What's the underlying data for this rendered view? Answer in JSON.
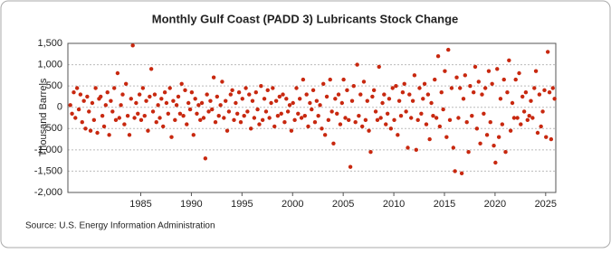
{
  "chart_data": {
    "type": "scatter",
    "title": "Monthly Gulf Coast (PADD 3) Lubricants Stock Change",
    "y_label": "Thousand Barrels",
    "source": "Source: U.S. Energy Information Administration",
    "xlim": [
      1977.8,
      2026.0
    ],
    "xticks": [
      1985,
      1990,
      1995,
      2000,
      2005,
      2010,
      2015,
      2020,
      2025
    ],
    "ylim": [
      -2000,
      1500
    ],
    "yticks": [
      {
        "value": 1500,
        "label": "1,500"
      },
      {
        "value": 1000,
        "label": "1,000"
      },
      500,
      0,
      -500,
      {
        "value": -1000,
        "label": "-1,000"
      },
      {
        "value": -1500,
        "label": "-1,500"
      },
      {
        "value": -2000,
        "label": "-2,000"
      }
    ],
    "grid": true,
    "series": [
      {
        "color": "#c8280f",
        "x": [
          1978.04,
          1978.21,
          1978.38,
          1978.54,
          1978.71,
          1978.88,
          1979.04,
          1979.21,
          1979.38,
          1979.54,
          1979.71,
          1979.88,
          1980.04,
          1980.21,
          1980.38,
          1980.54,
          1980.71,
          1980.88,
          1981.04,
          1981.21,
          1981.38,
          1981.54,
          1981.71,
          1981.88,
          1982.04,
          1982.21,
          1982.38,
          1982.54,
          1982.71,
          1982.88,
          1983.04,
          1983.21,
          1983.38,
          1983.54,
          1983.71,
          1983.88,
          1984.04,
          1984.21,
          1984.38,
          1984.54,
          1984.71,
          1984.88,
          1985.04,
          1985.21,
          1985.38,
          1985.54,
          1985.71,
          1985.88,
          1986.04,
          1986.21,
          1986.38,
          1986.54,
          1986.71,
          1986.88,
          1987.04,
          1987.21,
          1987.38,
          1987.54,
          1987.71,
          1987.88,
          1988.04,
          1988.21,
          1988.38,
          1988.54,
          1988.71,
          1988.88,
          1989.04,
          1989.21,
          1989.38,
          1989.54,
          1989.71,
          1989.88,
          1990.04,
          1990.21,
          1990.38,
          1990.54,
          1990.71,
          1990.88,
          1991.04,
          1991.21,
          1991.38,
          1991.54,
          1991.71,
          1991.88,
          1992.04,
          1992.21,
          1992.38,
          1992.54,
          1992.71,
          1992.88,
          1993.04,
          1993.21,
          1993.38,
          1993.54,
          1993.71,
          1993.88,
          1994.04,
          1994.21,
          1994.38,
          1994.54,
          1994.71,
          1994.88,
          1995.04,
          1995.21,
          1995.38,
          1995.54,
          1995.71,
          1995.88,
          1996.04,
          1996.21,
          1996.38,
          1996.54,
          1996.71,
          1996.88,
          1997.04,
          1997.21,
          1997.38,
          1997.54,
          1997.71,
          1997.88,
          1998.04,
          1998.21,
          1998.38,
          1998.54,
          1998.71,
          1998.88,
          1999.04,
          1999.21,
          1999.38,
          1999.54,
          1999.71,
          1999.88,
          2000.04,
          2000.21,
          2000.38,
          2000.54,
          2000.71,
          2000.88,
          2001.04,
          2001.21,
          2001.38,
          2001.54,
          2001.71,
          2001.88,
          2002.04,
          2002.21,
          2002.38,
          2002.54,
          2002.71,
          2002.88,
          2003.04,
          2003.21,
          2003.38,
          2003.54,
          2003.71,
          2003.88,
          2004.04,
          2004.21,
          2004.38,
          2004.54,
          2004.71,
          2004.88,
          2005.04,
          2005.21,
          2005.38,
          2005.54,
          2005.71,
          2005.88,
          2006.04,
          2006.21,
          2006.38,
          2006.54,
          2006.71,
          2006.88,
          2007.04,
          2007.21,
          2007.38,
          2007.54,
          2007.71,
          2007.88,
          2008.04,
          2008.21,
          2008.38,
          2008.54,
          2008.71,
          2008.88,
          2009.04,
          2009.21,
          2009.38,
          2009.54,
          2009.71,
          2009.88,
          2010.04,
          2010.21,
          2010.38,
          2010.54,
          2010.71,
          2010.88,
          2011.04,
          2011.21,
          2011.38,
          2011.54,
          2011.71,
          2011.88,
          2012.04,
          2012.21,
          2012.38,
          2012.54,
          2012.71,
          2012.88,
          2013.04,
          2013.21,
          2013.38,
          2013.54,
          2013.71,
          2013.88,
          2014.04,
          2014.21,
          2014.38,
          2014.54,
          2014.71,
          2014.88,
          2015.04,
          2015.21,
          2015.38,
          2015.54,
          2015.71,
          2015.88,
          2016.04,
          2016.21,
          2016.38,
          2016.54,
          2016.71,
          2016.88,
          2017.04,
          2017.21,
          2017.38,
          2017.54,
          2017.71,
          2017.88,
          2018.04,
          2018.21,
          2018.38,
          2018.54,
          2018.71,
          2018.88,
          2019.04,
          2019.21,
          2019.38,
          2019.54,
          2019.71,
          2019.88,
          2020.04,
          2020.21,
          2020.38,
          2020.54,
          2020.71,
          2020.88,
          2021.04,
          2021.21,
          2021.38,
          2021.54,
          2021.71,
          2021.88,
          2022.04,
          2022.21,
          2022.38,
          2022.54,
          2022.71,
          2022.88,
          2023.04,
          2023.21,
          2023.38,
          2023.54,
          2023.71,
          2023.88,
          2024.04,
          2024.21,
          2024.38,
          2024.54,
          2024.71,
          2024.88,
          2025.04,
          2025.21,
          2025.38,
          2025.54,
          2025.71,
          2025.88
        ],
        "values": [
          50,
          -150,
          350,
          -250,
          450,
          -50,
          300,
          -350,
          150,
          -500,
          250,
          -100,
          -550,
          100,
          -300,
          450,
          -600,
          200,
          250,
          -200,
          -450,
          50,
          350,
          -650,
          150,
          -100,
          450,
          -300,
          800,
          -250,
          50,
          300,
          -400,
          550,
          -200,
          -650,
          200,
          1450,
          -250,
          100,
          -150,
          300,
          -300,
          450,
          -200,
          150,
          -550,
          250,
          900,
          -100,
          300,
          -350,
          50,
          -250,
          200,
          -450,
          350,
          100,
          -150,
          450,
          -700,
          150,
          -300,
          50,
          250,
          -150,
          550,
          -200,
          400,
          -400,
          100,
          -50,
          350,
          -650,
          200,
          -150,
          50,
          -300,
          100,
          -250,
          -1200,
          300,
          -100,
          150,
          -50,
          700,
          -350,
          250,
          -200,
          50,
          600,
          -250,
          150,
          -550,
          -100,
          300,
          400,
          -300,
          100,
          -150,
          350,
          -350,
          200,
          -200,
          450,
          -100,
          300,
          -500,
          150,
          -250,
          350,
          -50,
          -400,
          500,
          -300,
          200,
          -100,
          400,
          -250,
          100,
          450,
          -450,
          150,
          -200,
          250,
          -150,
          300,
          -350,
          200,
          -100,
          50,
          -550,
          100,
          -300,
          450,
          -150,
          200,
          -250,
          650,
          -200,
          300,
          -450,
          100,
          -50,
          400,
          -350,
          150,
          -200,
          50,
          -500,
          550,
          -650,
          250,
          -300,
          650,
          -100,
          -850,
          200,
          -150,
          300,
          -400,
          100,
          650,
          -250,
          400,
          -300,
          -1400,
          150,
          500,
          -350,
          1000,
          -200,
          300,
          -450,
          600,
          -300,
          150,
          -550,
          -1050,
          250,
          400,
          -100,
          -300,
          950,
          -250,
          100,
          300,
          -400,
          -150,
          200,
          -500,
          450,
          -300,
          500,
          -650,
          150,
          -200,
          350,
          550,
          -100,
          -950,
          300,
          -250,
          150,
          750,
          -1000,
          -300,
          450,
          -150,
          200,
          550,
          -400,
          300,
          -750,
          100,
          -200,
          650,
          -250,
          1200,
          -450,
          350,
          -50,
          850,
          -700,
          1350,
          -300,
          450,
          -950,
          -1500,
          700,
          -250,
          450,
          -1550,
          200,
          750,
          -350,
          -1050,
          500,
          -200,
          350,
          950,
          -500,
          600,
          -850,
          300,
          -150,
          450,
          -650,
          850,
          -350,
          550,
          -900,
          -1300,
          900,
          -700,
          200,
          -400,
          650,
          -1050,
          350,
          1100,
          -550,
          100,
          -250,
          650,
          -250,
          800,
          -400,
          250,
          -100,
          350,
          -300,
          -200,
          150,
          -250,
          450,
          850,
          -600,
          300,
          -450,
          -100,
          400,
          -700,
          1300,
          350,
          -750,
          450,
          200
        ]
      }
    ]
  }
}
